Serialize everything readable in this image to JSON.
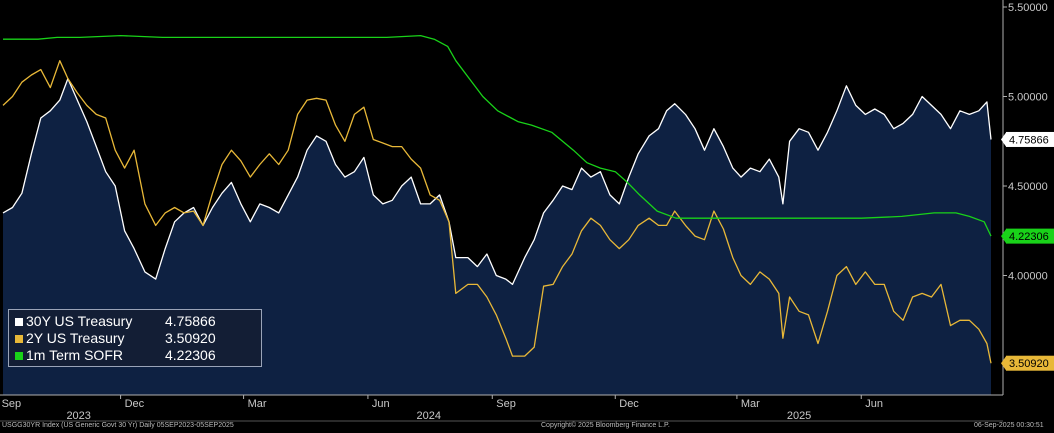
{
  "chart_data": {
    "type": "line",
    "title": "",
    "y_ticks": [
      "5.50000",
      "5.00000",
      "4.50000",
      "4.00000"
    ],
    "y_tick_values": [
      5.5,
      5.0,
      4.5,
      4.0
    ],
    "ylim": [
      3.4,
      5.53
    ],
    "x_month_labels": [
      "Sep",
      "Dec",
      "Mar",
      "Jun",
      "Sep",
      "Dec",
      "Mar",
      "Jun"
    ],
    "x_month_dates": [
      "2023-09-01",
      "2023-12-01",
      "2024-03-01",
      "2024-06-01",
      "2024-09-01",
      "2024-12-01",
      "2025-03-01",
      "2025-06-01"
    ],
    "x_year_labels": [
      "2023",
      "2024",
      "2025"
    ],
    "x_year_dates": [
      "2023-10-31",
      "2024-07-16",
      "2025-04-16"
    ],
    "xlim": [
      "2023-09-05",
      "2025-09-05"
    ],
    "grid": false,
    "legend_position": "bottom-left",
    "series": [
      {
        "name": "30Y US Treasury",
        "last": "4.75866",
        "color": "#ffffff",
        "fill": "#0e2142",
        "points": [
          [
            "2023-09-05",
            4.35
          ],
          [
            "2023-09-12",
            4.38
          ],
          [
            "2023-09-19",
            4.46
          ],
          [
            "2023-09-26",
            4.68
          ],
          [
            "2023-10-03",
            4.88
          ],
          [
            "2023-10-10",
            4.92
          ],
          [
            "2023-10-17",
            4.98
          ],
          [
            "2023-10-23",
            5.1
          ],
          [
            "2023-10-30",
            4.98
          ],
          [
            "2023-11-06",
            4.86
          ],
          [
            "2023-11-13",
            4.72
          ],
          [
            "2023-11-20",
            4.58
          ],
          [
            "2023-11-27",
            4.5
          ],
          [
            "2023-12-04",
            4.25
          ],
          [
            "2023-12-11",
            4.15
          ],
          [
            "2023-12-19",
            4.02
          ],
          [
            "2023-12-27",
            3.98
          ],
          [
            "2024-01-03",
            4.15
          ],
          [
            "2024-01-10",
            4.3
          ],
          [
            "2024-01-17",
            4.35
          ],
          [
            "2024-01-24",
            4.38
          ],
          [
            "2024-01-31",
            4.28
          ],
          [
            "2024-02-07",
            4.38
          ],
          [
            "2024-02-14",
            4.46
          ],
          [
            "2024-02-21",
            4.52
          ],
          [
            "2024-02-28",
            4.4
          ],
          [
            "2024-03-06",
            4.3
          ],
          [
            "2024-03-13",
            4.4
          ],
          [
            "2024-03-20",
            4.38
          ],
          [
            "2024-03-27",
            4.35
          ],
          [
            "2024-04-03",
            4.45
          ],
          [
            "2024-04-10",
            4.55
          ],
          [
            "2024-04-17",
            4.7
          ],
          [
            "2024-04-24",
            4.78
          ],
          [
            "2024-05-01",
            4.75
          ],
          [
            "2024-05-08",
            4.62
          ],
          [
            "2024-05-15",
            4.55
          ],
          [
            "2024-05-22",
            4.58
          ],
          [
            "2024-05-29",
            4.66
          ],
          [
            "2024-06-05",
            4.45
          ],
          [
            "2024-06-12",
            4.4
          ],
          [
            "2024-06-19",
            4.42
          ],
          [
            "2024-06-26",
            4.5
          ],
          [
            "2024-07-03",
            4.55
          ],
          [
            "2024-07-10",
            4.4
          ],
          [
            "2024-07-17",
            4.4
          ],
          [
            "2024-07-24",
            4.45
          ],
          [
            "2024-07-31",
            4.3
          ],
          [
            "2024-08-05",
            4.1
          ],
          [
            "2024-08-14",
            4.1
          ],
          [
            "2024-08-21",
            4.05
          ],
          [
            "2024-08-28",
            4.12
          ],
          [
            "2024-09-04",
            4.0
          ],
          [
            "2024-09-11",
            3.98
          ],
          [
            "2024-09-16",
            3.95
          ],
          [
            "2024-09-25",
            4.1
          ],
          [
            "2024-10-02",
            4.2
          ],
          [
            "2024-10-09",
            4.35
          ],
          [
            "2024-10-16",
            4.42
          ],
          [
            "2024-10-23",
            4.5
          ],
          [
            "2024-10-30",
            4.48
          ],
          [
            "2024-11-06",
            4.6
          ],
          [
            "2024-11-13",
            4.55
          ],
          [
            "2024-11-20",
            4.58
          ],
          [
            "2024-11-27",
            4.45
          ],
          [
            "2024-12-04",
            4.4
          ],
          [
            "2024-12-11",
            4.55
          ],
          [
            "2024-12-18",
            4.68
          ],
          [
            "2024-12-26",
            4.78
          ],
          [
            "2025-01-02",
            4.82
          ],
          [
            "2025-01-08",
            4.92
          ],
          [
            "2025-01-14",
            4.96
          ],
          [
            "2025-01-22",
            4.9
          ],
          [
            "2025-01-29",
            4.82
          ],
          [
            "2025-02-05",
            4.7
          ],
          [
            "2025-02-12",
            4.82
          ],
          [
            "2025-02-19",
            4.72
          ],
          [
            "2025-02-26",
            4.6
          ],
          [
            "2025-03-04",
            4.55
          ],
          [
            "2025-03-11",
            4.6
          ],
          [
            "2025-03-18",
            4.58
          ],
          [
            "2025-03-25",
            4.65
          ],
          [
            "2025-04-01",
            4.55
          ],
          [
            "2025-04-04",
            4.4
          ],
          [
            "2025-04-09",
            4.75
          ],
          [
            "2025-04-16",
            4.82
          ],
          [
            "2025-04-23",
            4.8
          ],
          [
            "2025-04-30",
            4.7
          ],
          [
            "2025-05-07",
            4.8
          ],
          [
            "2025-05-14",
            4.92
          ],
          [
            "2025-05-21",
            5.06
          ],
          [
            "2025-05-28",
            4.95
          ],
          [
            "2025-06-04",
            4.9
          ],
          [
            "2025-06-11",
            4.93
          ],
          [
            "2025-06-18",
            4.9
          ],
          [
            "2025-06-25",
            4.82
          ],
          [
            "2025-07-02",
            4.85
          ],
          [
            "2025-07-09",
            4.9
          ],
          [
            "2025-07-16",
            5.0
          ],
          [
            "2025-07-23",
            4.95
          ],
          [
            "2025-07-30",
            4.9
          ],
          [
            "2025-08-06",
            4.82
          ],
          [
            "2025-08-13",
            4.92
          ],
          [
            "2025-08-20",
            4.9
          ],
          [
            "2025-08-27",
            4.92
          ],
          [
            "2025-09-02",
            4.97
          ],
          [
            "2025-09-05",
            4.76
          ]
        ]
      },
      {
        "name": "2Y US Treasury",
        "last": "3.50920",
        "color": "#e8b838",
        "points": [
          [
            "2023-09-05",
            4.95
          ],
          [
            "2023-09-12",
            5.0
          ],
          [
            "2023-09-19",
            5.08
          ],
          [
            "2023-09-26",
            5.12
          ],
          [
            "2023-10-03",
            5.15
          ],
          [
            "2023-10-10",
            5.05
          ],
          [
            "2023-10-17",
            5.2
          ],
          [
            "2023-10-23",
            5.1
          ],
          [
            "2023-10-30",
            5.02
          ],
          [
            "2023-11-06",
            4.95
          ],
          [
            "2023-11-13",
            4.9
          ],
          [
            "2023-11-20",
            4.88
          ],
          [
            "2023-11-27",
            4.7
          ],
          [
            "2023-12-04",
            4.6
          ],
          [
            "2023-12-11",
            4.7
          ],
          [
            "2023-12-19",
            4.4
          ],
          [
            "2023-12-27",
            4.28
          ],
          [
            "2024-01-03",
            4.35
          ],
          [
            "2024-01-10",
            4.38
          ],
          [
            "2024-01-17",
            4.35
          ],
          [
            "2024-01-24",
            4.36
          ],
          [
            "2024-01-31",
            4.28
          ],
          [
            "2024-02-07",
            4.46
          ],
          [
            "2024-02-14",
            4.62
          ],
          [
            "2024-02-21",
            4.7
          ],
          [
            "2024-02-28",
            4.64
          ],
          [
            "2024-03-06",
            4.55
          ],
          [
            "2024-03-13",
            4.62
          ],
          [
            "2024-03-20",
            4.68
          ],
          [
            "2024-03-27",
            4.62
          ],
          [
            "2024-04-03",
            4.7
          ],
          [
            "2024-04-10",
            4.9
          ],
          [
            "2024-04-17",
            4.98
          ],
          [
            "2024-04-24",
            4.99
          ],
          [
            "2024-05-01",
            4.98
          ],
          [
            "2024-05-08",
            4.84
          ],
          [
            "2024-05-15",
            4.75
          ],
          [
            "2024-05-22",
            4.9
          ],
          [
            "2024-05-29",
            4.94
          ],
          [
            "2024-06-05",
            4.76
          ],
          [
            "2024-06-12",
            4.74
          ],
          [
            "2024-06-19",
            4.72
          ],
          [
            "2024-06-26",
            4.72
          ],
          [
            "2024-07-03",
            4.65
          ],
          [
            "2024-07-10",
            4.6
          ],
          [
            "2024-07-17",
            4.45
          ],
          [
            "2024-07-24",
            4.42
          ],
          [
            "2024-07-31",
            4.3
          ],
          [
            "2024-08-05",
            3.9
          ],
          [
            "2024-08-14",
            3.95
          ],
          [
            "2024-08-21",
            3.95
          ],
          [
            "2024-08-28",
            3.88
          ],
          [
            "2024-09-04",
            3.78
          ],
          [
            "2024-09-11",
            3.65
          ],
          [
            "2024-09-16",
            3.55
          ],
          [
            "2024-09-25",
            3.55
          ],
          [
            "2024-10-02",
            3.6
          ],
          [
            "2024-10-09",
            3.94
          ],
          [
            "2024-10-16",
            3.95
          ],
          [
            "2024-10-23",
            4.05
          ],
          [
            "2024-10-30",
            4.12
          ],
          [
            "2024-11-06",
            4.25
          ],
          [
            "2024-11-13",
            4.32
          ],
          [
            "2024-11-20",
            4.28
          ],
          [
            "2024-11-27",
            4.2
          ],
          [
            "2024-12-04",
            4.15
          ],
          [
            "2024-12-11",
            4.2
          ],
          [
            "2024-12-18",
            4.28
          ],
          [
            "2024-12-26",
            4.32
          ],
          [
            "2025-01-02",
            4.28
          ],
          [
            "2025-01-08",
            4.28
          ],
          [
            "2025-01-14",
            4.36
          ],
          [
            "2025-01-22",
            4.28
          ],
          [
            "2025-01-29",
            4.22
          ],
          [
            "2025-02-05",
            4.2
          ],
          [
            "2025-02-12",
            4.36
          ],
          [
            "2025-02-19",
            4.26
          ],
          [
            "2025-02-26",
            4.1
          ],
          [
            "2025-03-04",
            4.0
          ],
          [
            "2025-03-11",
            3.95
          ],
          [
            "2025-03-18",
            4.02
          ],
          [
            "2025-03-25",
            3.98
          ],
          [
            "2025-04-01",
            3.9
          ],
          [
            "2025-04-04",
            3.65
          ],
          [
            "2025-04-09",
            3.88
          ],
          [
            "2025-04-16",
            3.8
          ],
          [
            "2025-04-23",
            3.78
          ],
          [
            "2025-04-30",
            3.62
          ],
          [
            "2025-05-07",
            3.8
          ],
          [
            "2025-05-14",
            4.0
          ],
          [
            "2025-05-21",
            4.05
          ],
          [
            "2025-05-28",
            3.95
          ],
          [
            "2025-06-04",
            4.02
          ],
          [
            "2025-06-11",
            3.95
          ],
          [
            "2025-06-18",
            3.95
          ],
          [
            "2025-06-25",
            3.8
          ],
          [
            "2025-07-02",
            3.75
          ],
          [
            "2025-07-09",
            3.88
          ],
          [
            "2025-07-16",
            3.9
          ],
          [
            "2025-07-23",
            3.88
          ],
          [
            "2025-07-30",
            3.95
          ],
          [
            "2025-08-06",
            3.72
          ],
          [
            "2025-08-13",
            3.75
          ],
          [
            "2025-08-20",
            3.75
          ],
          [
            "2025-08-27",
            3.7
          ],
          [
            "2025-09-02",
            3.62
          ],
          [
            "2025-09-05",
            3.51
          ]
        ]
      },
      {
        "name": "1m Term SOFR",
        "last": "4.22306",
        "color": "#19d219",
        "points": [
          [
            "2023-09-05",
            5.32
          ],
          [
            "2023-10-01",
            5.32
          ],
          [
            "2023-10-15",
            5.33
          ],
          [
            "2023-11-01",
            5.33
          ],
          [
            "2023-12-01",
            5.34
          ],
          [
            "2024-01-01",
            5.33
          ],
          [
            "2024-03-01",
            5.33
          ],
          [
            "2024-05-01",
            5.33
          ],
          [
            "2024-06-15",
            5.33
          ],
          [
            "2024-07-10",
            5.34
          ],
          [
            "2024-07-20",
            5.32
          ],
          [
            "2024-07-30",
            5.28
          ],
          [
            "2024-08-05",
            5.2
          ],
          [
            "2024-08-15",
            5.1
          ],
          [
            "2024-08-25",
            5.0
          ],
          [
            "2024-09-05",
            4.92
          ],
          [
            "2024-09-15",
            4.88
          ],
          [
            "2024-09-20",
            4.86
          ],
          [
            "2024-09-30",
            4.84
          ],
          [
            "2024-10-15",
            4.8
          ],
          [
            "2024-10-31",
            4.7
          ],
          [
            "2024-11-10",
            4.63
          ],
          [
            "2024-11-20",
            4.6
          ],
          [
            "2024-12-01",
            4.58
          ],
          [
            "2024-12-10",
            4.52
          ],
          [
            "2024-12-19",
            4.45
          ],
          [
            "2025-01-01",
            4.36
          ],
          [
            "2025-01-15",
            4.32
          ],
          [
            "2025-02-01",
            4.32
          ],
          [
            "2025-03-01",
            4.32
          ],
          [
            "2025-04-01",
            4.32
          ],
          [
            "2025-05-01",
            4.32
          ],
          [
            "2025-06-01",
            4.32
          ],
          [
            "2025-07-01",
            4.33
          ],
          [
            "2025-07-25",
            4.35
          ],
          [
            "2025-08-10",
            4.35
          ],
          [
            "2025-08-20",
            4.33
          ],
          [
            "2025-08-31",
            4.3
          ],
          [
            "2025-09-05",
            4.22
          ]
        ]
      }
    ]
  },
  "footer": {
    "left": "USGG30YR Index (US Generic Govt 30 Yr)  Daily 05SEP2023-05SEP2025",
    "center": "Copyright© 2025 Bloomberg Finance L.P.",
    "right": "06-Sep-2025 00:30:51"
  }
}
